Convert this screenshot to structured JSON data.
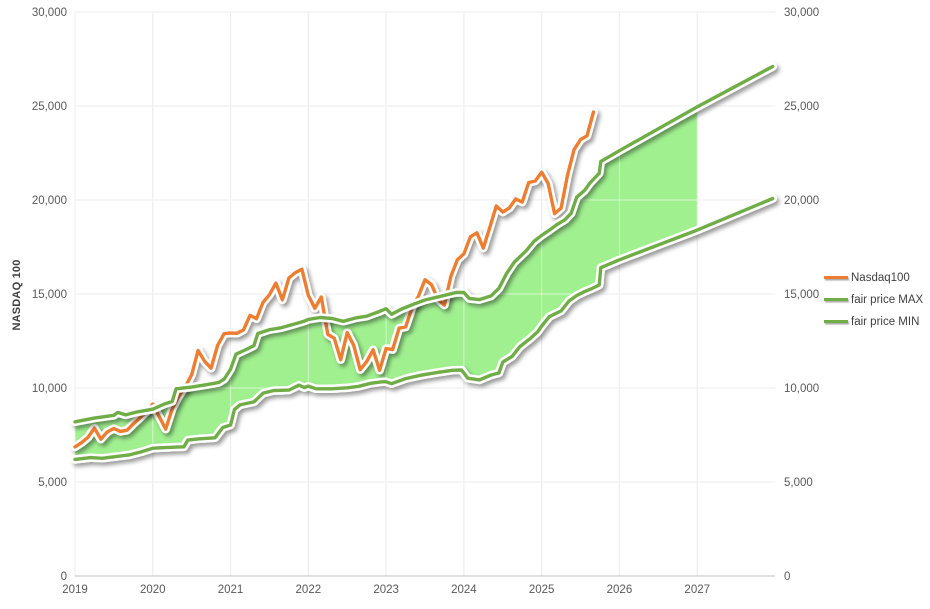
{
  "page": {
    "background": "#FFFFFF"
  },
  "axis_titles": {
    "y_left": "NASDAQ 100"
  },
  "legend": {
    "position": "right",
    "items": [
      {
        "label": "Nasdaq100",
        "color": "#ED7D31"
      },
      {
        "label": "fair price MAX",
        "color": "#70AD47"
      },
      {
        "label": "fair price MIN",
        "color": "#70AD47"
      }
    ]
  },
  "colors": {
    "nasdaq_line": "#ED7D31",
    "fair_price_lines": "#70AD47",
    "band_fill": "#A0F08F",
    "gridline": "#D9D9D9",
    "axis_line": "#BFBFBF",
    "tick_label": "#595959",
    "axis_title": "#404040"
  },
  "chart_data": {
    "type": "line",
    "title": "",
    "xlabel": "",
    "ylabel": "NASDAQ 100",
    "grid": true,
    "legend_position": "right",
    "x_axis": {
      "min": 2019,
      "max": 2028,
      "ticks": [
        {
          "v": 2019,
          "label": "2019"
        },
        {
          "v": 2020,
          "label": "2020"
        },
        {
          "v": 2021,
          "label": "2021"
        },
        {
          "v": 2022,
          "label": "2022"
        },
        {
          "v": 2023,
          "label": "2023"
        },
        {
          "v": 2024,
          "label": "2024"
        },
        {
          "v": 2025,
          "label": "2025"
        },
        {
          "v": 2026,
          "label": "2026"
        },
        {
          "v": 2027,
          "label": "2027"
        }
      ]
    },
    "y_axis": {
      "min": 0,
      "max": 30000,
      "dual_labels": true,
      "ticks": [
        {
          "v": 0,
          "label": "0"
        },
        {
          "v": 5000,
          "label": "5,000"
        },
        {
          "v": 10000,
          "label": "10,000"
        },
        {
          "v": 15000,
          "label": "15,000"
        },
        {
          "v": 20000,
          "label": "20,000"
        },
        {
          "v": 25000,
          "label": "25,000"
        },
        {
          "v": 30000,
          "label": "30,000"
        }
      ]
    },
    "series": [
      {
        "name": "Nasdaq100",
        "color": "#ED7D31",
        "x_start": 2019.0,
        "x_step_years": 0.083333,
        "values": [
          6869,
          7090,
          7378,
          7866,
          7278,
          7671,
          7848,
          7691,
          7749,
          8083,
          8403,
          8734,
          9151,
          8461,
          7813,
          8890,
          9556,
          10057,
          10706,
          11996,
          11418,
          11053,
          12268,
          12888,
          12925,
          12909,
          13091,
          13860,
          13687,
          14555,
          14960,
          15582,
          14690,
          15850,
          16136,
          16320,
          14930,
          14238,
          14838,
          12855,
          12642,
          11504,
          12948,
          12272,
          10971,
          11406,
          12030,
          10940,
          12101,
          12042,
          13181,
          13246,
          14254,
          14891,
          15757,
          15501,
          14715,
          14410,
          15948,
          16826,
          17137,
          18044,
          18254,
          17440,
          18536,
          19683,
          19362,
          19575,
          20060,
          19890,
          20930,
          21012,
          21478,
          20884,
          19278,
          19571,
          21341,
          22679,
          23218,
          23415,
          24680
        ]
      },
      {
        "name": "fair price MAX",
        "color": "#70AD47",
        "points": [
          [
            2019.0,
            8200
          ],
          [
            2019.25,
            8400
          ],
          [
            2019.5,
            8550
          ],
          [
            2019.55,
            8700
          ],
          [
            2019.65,
            8570
          ],
          [
            2019.8,
            8730
          ],
          [
            2020.0,
            8870
          ],
          [
            2020.15,
            9150
          ],
          [
            2020.25,
            9280
          ],
          [
            2020.3,
            9960
          ],
          [
            2020.5,
            10050
          ],
          [
            2020.7,
            10180
          ],
          [
            2020.85,
            10300
          ],
          [
            2020.92,
            10480
          ],
          [
            2021.0,
            11000
          ],
          [
            2021.07,
            11800
          ],
          [
            2021.2,
            12050
          ],
          [
            2021.3,
            12250
          ],
          [
            2021.35,
            12900
          ],
          [
            2021.5,
            13100
          ],
          [
            2021.65,
            13200
          ],
          [
            2021.8,
            13380
          ],
          [
            2021.95,
            13560
          ],
          [
            2022.0,
            13650
          ],
          [
            2022.15,
            13750
          ],
          [
            2022.3,
            13700
          ],
          [
            2022.45,
            13550
          ],
          [
            2022.6,
            13720
          ],
          [
            2022.75,
            13820
          ],
          [
            2022.9,
            14050
          ],
          [
            2023.0,
            14220
          ],
          [
            2023.07,
            13920
          ],
          [
            2023.2,
            14200
          ],
          [
            2023.35,
            14450
          ],
          [
            2023.5,
            14680
          ],
          [
            2023.7,
            14880
          ],
          [
            2023.9,
            15080
          ],
          [
            2024.0,
            15080
          ],
          [
            2024.07,
            14760
          ],
          [
            2024.2,
            14700
          ],
          [
            2024.35,
            14900
          ],
          [
            2024.45,
            15300
          ],
          [
            2024.55,
            16100
          ],
          [
            2024.65,
            16700
          ],
          [
            2024.8,
            17300
          ],
          [
            2024.9,
            17800
          ],
          [
            2025.0,
            18120
          ],
          [
            2025.1,
            18400
          ],
          [
            2025.2,
            18700
          ],
          [
            2025.3,
            18950
          ],
          [
            2025.38,
            19300
          ],
          [
            2025.45,
            20150
          ],
          [
            2025.55,
            20500
          ],
          [
            2025.62,
            20900
          ],
          [
            2025.7,
            21250
          ],
          [
            2025.74,
            21420
          ],
          [
            2025.76,
            22050
          ],
          [
            2026.0,
            22620
          ],
          [
            2027.0,
            24950
          ],
          [
            2027.97,
            27100
          ]
        ]
      },
      {
        "name": "fair price MIN",
        "color": "#70AD47",
        "points": [
          [
            2019.0,
            6200
          ],
          [
            2019.2,
            6300
          ],
          [
            2019.35,
            6260
          ],
          [
            2019.5,
            6340
          ],
          [
            2019.7,
            6440
          ],
          [
            2019.85,
            6600
          ],
          [
            2020.0,
            6800
          ],
          [
            2020.2,
            6840
          ],
          [
            2020.4,
            6870
          ],
          [
            2020.45,
            7230
          ],
          [
            2020.6,
            7300
          ],
          [
            2020.8,
            7350
          ],
          [
            2020.9,
            7900
          ],
          [
            2021.0,
            8030
          ],
          [
            2021.05,
            8850
          ],
          [
            2021.12,
            9100
          ],
          [
            2021.3,
            9260
          ],
          [
            2021.42,
            9730
          ],
          [
            2021.55,
            9860
          ],
          [
            2021.75,
            9890
          ],
          [
            2021.88,
            10150
          ],
          [
            2021.95,
            10020
          ],
          [
            2022.0,
            10100
          ],
          [
            2022.1,
            9960
          ],
          [
            2022.3,
            9960
          ],
          [
            2022.5,
            10010
          ],
          [
            2022.65,
            10090
          ],
          [
            2022.8,
            10250
          ],
          [
            2022.95,
            10330
          ],
          [
            2023.0,
            10330
          ],
          [
            2023.07,
            10230
          ],
          [
            2023.25,
            10500
          ],
          [
            2023.45,
            10680
          ],
          [
            2023.65,
            10820
          ],
          [
            2023.85,
            10940
          ],
          [
            2023.97,
            10960
          ],
          [
            2024.05,
            10520
          ],
          [
            2024.2,
            10430
          ],
          [
            2024.35,
            10690
          ],
          [
            2024.45,
            10800
          ],
          [
            2024.5,
            11380
          ],
          [
            2024.62,
            11680
          ],
          [
            2024.72,
            12200
          ],
          [
            2024.85,
            12620
          ],
          [
            2024.95,
            13000
          ],
          [
            2025.0,
            13300
          ],
          [
            2025.1,
            13800
          ],
          [
            2025.25,
            14100
          ],
          [
            2025.35,
            14620
          ],
          [
            2025.45,
            14920
          ],
          [
            2025.55,
            15120
          ],
          [
            2025.65,
            15300
          ],
          [
            2025.74,
            15480
          ],
          [
            2025.76,
            16400
          ],
          [
            2026.0,
            16820
          ],
          [
            2027.0,
            18400
          ],
          [
            2027.97,
            20080
          ]
        ]
      }
    ],
    "band": {
      "upper": "fair price MAX",
      "lower": "fair price MIN",
      "fill": "#A0F08F",
      "x_end": 2027
    }
  }
}
